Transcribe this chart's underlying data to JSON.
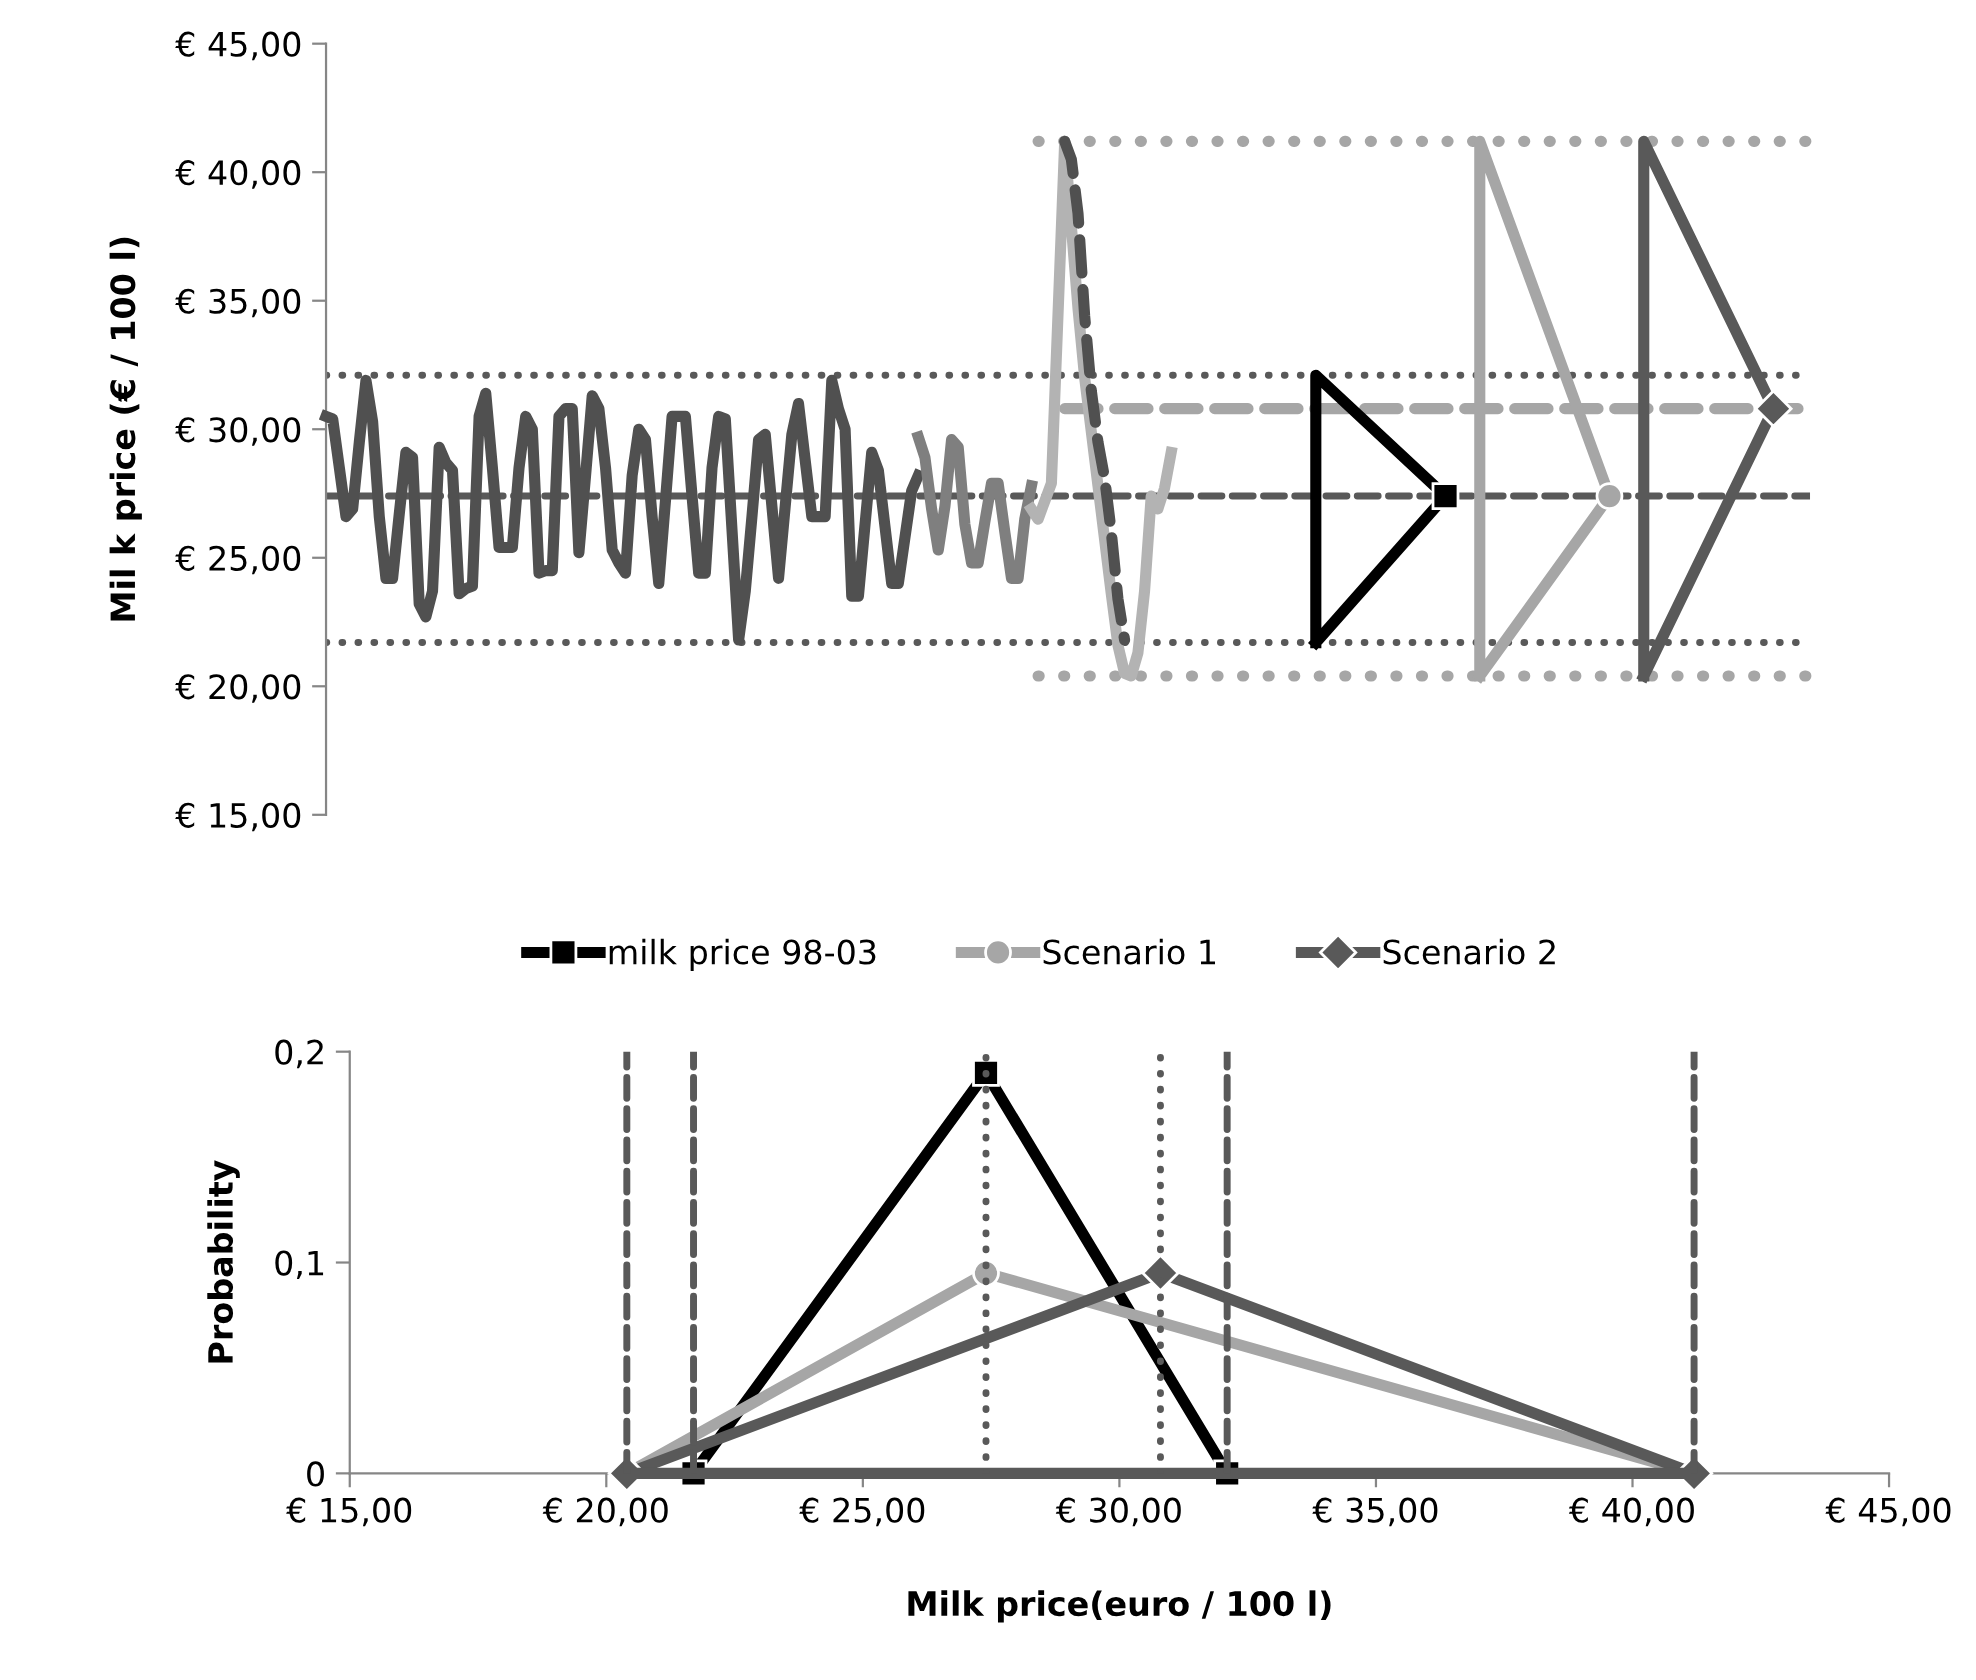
{
  "chart_data": [
    {
      "type": "line",
      "ylabel": "Mil k price (€ / 100 l)",
      "ylim": [
        15,
        45
      ],
      "tick_labels": "y",
      "categories": [
        null,
        null,
        null,
        null,
        null,
        null,
        null,
        null,
        null,
        null,
        null,
        null,
        null,
        null,
        null,
        null,
        null,
        null,
        null,
        null,
        null,
        null,
        null,
        null,
        null,
        null,
        null,
        null,
        null,
        null,
        null,
        null,
        null,
        null,
        null,
        null,
        null,
        null,
        null,
        null,
        null,
        null,
        null,
        null,
        null,
        null,
        null,
        null,
        null,
        null,
        null,
        null,
        null,
        null,
        null,
        null,
        null,
        null,
        null,
        null,
        null,
        null,
        null,
        null,
        null,
        null,
        null,
        null,
        null,
        null,
        null,
        null,
        null,
        null,
        null,
        null,
        null,
        null,
        null,
        null,
        null,
        null,
        null,
        null,
        null,
        null,
        null,
        null,
        null,
        null,
        null,
        null,
        null,
        null,
        null,
        null,
        null,
        null,
        null,
        null,
        null,
        null,
        null,
        null,
        null,
        null,
        null,
        null,
        null,
        null,
        null,
        null,
        null,
        null,
        null,
        null,
        null,
        null,
        null,
        null,
        null,
        null,
        null,
        null,
        null,
        null,
        null,
        null,
        null,
        null,
        null,
        null,
        null,
        null,
        null,
        null,
        null,
        null,
        null,
        null,
        null,
        null,
        null,
        null,
        null,
        null,
        null,
        null,
        null,
        null,
        null,
        null,
        null,
        null,
        null,
        null,
        null,
        null,
        null,
        null,
        null,
        null,
        null,
        null,
        null,
        null,
        null,
        null,
        null,
        null,
        null,
        null,
        null,
        null,
        null,
        null,
        null,
        null,
        null,
        null,
        null,
        null,
        null,
        null,
        null,
        null,
        null,
        null,
        null,
        null,
        null,
        null,
        null,
        null,
        null,
        null,
        null,
        null,
        null,
        null,
        null,
        null,
        null,
        null,
        null,
        null,
        null,
        null,
        null,
        null,
        null,
        null,
        null,
        null,
        null,
        null,
        null,
        null,
        null,
        null,
        null,
        null,
        null,
        null
      ],
      "yticks": [
        {
          "value": 15,
          "label": "€ 15,00"
        },
        {
          "value": 20,
          "label": "€ 20,00"
        },
        {
          "value": 25,
          "label": "€ 25,00"
        },
        {
          "value": 30,
          "label": "€ 30,00"
        },
        {
          "value": 35,
          "label": "€ 35,00"
        },
        {
          "value": 40,
          "label": "€ 40,00"
        },
        {
          "value": 45,
          "label": "€ 45,00"
        }
      ],
      "ref_lines": [
        {
          "axis": "y",
          "value": 32.1,
          "color": "#595959",
          "line_style": "dotted"
        },
        {
          "axis": "y",
          "value": 21.7,
          "color": "#595959",
          "line_style": "dotted"
        },
        {
          "axis": "y",
          "value": 27.4,
          "color": "#595959",
          "line_style": "dashed"
        }
      ],
      "series": [
        {
          "color": "#a6a6a6",
          "line_style": "dotted",
          "values": [
            null,
            null,
            null,
            null,
            null,
            null,
            null,
            null,
            null,
            null,
            null,
            null,
            null,
            null,
            null,
            null,
            null,
            null,
            null,
            null,
            null,
            null,
            null,
            null,
            null,
            null,
            null,
            null,
            null,
            null,
            null,
            null,
            null,
            null,
            null,
            null,
            null,
            null,
            null,
            null,
            null,
            null,
            null,
            null,
            null,
            null,
            null,
            null,
            null,
            null,
            null,
            null,
            null,
            null,
            null,
            null,
            null,
            null,
            null,
            null,
            null,
            null,
            null,
            null,
            null,
            null,
            null,
            null,
            null,
            null,
            null,
            null,
            null,
            null,
            null,
            null,
            null,
            null,
            null,
            null,
            null,
            null,
            null,
            null,
            null,
            null,
            null,
            null,
            null,
            null,
            null,
            null,
            null,
            null,
            null,
            null,
            null,
            null,
            null,
            null,
            null,
            null,
            null,
            null,
            null,
            null,
            null,
            41.2,
            41.2,
            41.2,
            41.2,
            41.2,
            41.2,
            41.2,
            41.2,
            41.2,
            41.2,
            41.2,
            41.2,
            41.2,
            41.2,
            41.2,
            41.2,
            41.2,
            41.2,
            41.2,
            41.2,
            41.2,
            41.2,
            41.2,
            41.2,
            41.2,
            41.2,
            41.2,
            41.2,
            41.2,
            41.2,
            41.2,
            41.2,
            41.2,
            41.2,
            41.2,
            41.2,
            41.2,
            41.2,
            41.2,
            41.2,
            41.2,
            41.2,
            41.2,
            41.2,
            41.2,
            41.2,
            41.2,
            41.2,
            41.2,
            41.2,
            41.2,
            41.2,
            41.2,
            41.2,
            41.2,
            41.2,
            41.2,
            41.2,
            41.2,
            41.2,
            41.2,
            41.2,
            41.2,
            41.2,
            41.2,
            41.2,
            41.2,
            41.2,
            41.2,
            41.2,
            41.2,
            41.2,
            41.2,
            41.2,
            41.2,
            41.2,
            41.2,
            41.2,
            41.2,
            41.2,
            41.2,
            41.2,
            41.2,
            41.2,
            41.2,
            41.2,
            41.2,
            41.2,
            41.2,
            41.2,
            41.2,
            41.2,
            41.2,
            41.2,
            41.2,
            41.2,
            41.2,
            41.2,
            41.2,
            41.2,
            41.2,
            41.2,
            41.2,
            41.2,
            41.2,
            41.2,
            41.2,
            41.2,
            41.2,
            41.2,
            41.2,
            41.2,
            41.2,
            41.2,
            41.2,
            41.2,
            41.2
          ]
        },
        {
          "color": "#a6a6a6",
          "line_style": "dotted",
          "values": [
            null,
            null,
            null,
            null,
            null,
            null,
            null,
            null,
            null,
            null,
            null,
            null,
            null,
            null,
            null,
            null,
            null,
            null,
            null,
            null,
            null,
            null,
            null,
            null,
            null,
            null,
            null,
            null,
            null,
            null,
            null,
            null,
            null,
            null,
            null,
            null,
            null,
            null,
            null,
            null,
            null,
            null,
            null,
            null,
            null,
            null,
            null,
            null,
            null,
            null,
            null,
            null,
            null,
            null,
            null,
            null,
            null,
            null,
            null,
            null,
            null,
            null,
            null,
            null,
            null,
            null,
            null,
            null,
            null,
            null,
            null,
            null,
            null,
            null,
            null,
            null,
            null,
            null,
            null,
            null,
            null,
            null,
            null,
            null,
            null,
            null,
            null,
            null,
            null,
            null,
            null,
            null,
            null,
            null,
            null,
            null,
            null,
            null,
            null,
            null,
            null,
            null,
            null,
            null,
            null,
            null,
            null,
            20.4,
            20.4,
            20.4,
            20.4,
            20.4,
            20.4,
            20.4,
            20.4,
            20.4,
            20.4,
            20.4,
            20.4,
            20.4,
            20.4,
            20.4,
            20.4,
            20.4,
            20.4,
            20.4,
            20.4,
            20.4,
            20.4,
            20.4,
            20.4,
            20.4,
            20.4,
            20.4,
            20.4,
            20.4,
            20.4,
            20.4,
            20.4,
            20.4,
            20.4,
            20.4,
            20.4,
            20.4,
            20.4,
            20.4,
            20.4,
            20.4,
            20.4,
            20.4,
            20.4,
            20.4,
            20.4,
            20.4,
            20.4,
            20.4,
            20.4,
            20.4,
            20.4,
            20.4,
            20.4,
            20.4,
            20.4,
            20.4,
            20.4,
            20.4,
            20.4,
            20.4,
            20.4,
            20.4,
            20.4,
            20.4,
            20.4,
            20.4,
            20.4,
            20.4,
            20.4,
            20.4,
            20.4,
            20.4,
            20.4,
            20.4,
            20.4,
            20.4,
            20.4,
            20.4,
            20.4,
            20.4,
            20.4,
            20.4,
            20.4,
            20.4,
            20.4,
            20.4,
            20.4,
            20.4,
            20.4,
            20.4,
            20.4,
            20.4,
            20.4,
            20.4,
            20.4,
            20.4,
            20.4,
            20.4,
            20.4,
            20.4,
            20.4,
            20.4,
            20.4,
            20.4,
            20.4,
            20.4,
            20.4,
            20.4,
            20.4,
            20.4,
            20.4,
            20.4,
            20.4,
            20.4,
            20.4,
            20.4
          ]
        },
        {
          "color": "#a6a6a6",
          "line_style": "dashed",
          "values": [
            null,
            null,
            null,
            null,
            null,
            null,
            null,
            null,
            null,
            null,
            null,
            null,
            null,
            null,
            null,
            null,
            null,
            null,
            null,
            null,
            null,
            null,
            null,
            null,
            null,
            null,
            null,
            null,
            null,
            null,
            null,
            null,
            null,
            null,
            null,
            null,
            null,
            null,
            null,
            null,
            null,
            null,
            null,
            null,
            null,
            null,
            null,
            null,
            null,
            null,
            null,
            null,
            null,
            null,
            null,
            null,
            null,
            null,
            null,
            null,
            null,
            null,
            null,
            null,
            null,
            null,
            null,
            null,
            null,
            null,
            null,
            null,
            null,
            null,
            null,
            null,
            null,
            null,
            null,
            null,
            null,
            null,
            null,
            null,
            null,
            null,
            null,
            null,
            null,
            null,
            null,
            null,
            null,
            null,
            null,
            null,
            null,
            null,
            null,
            null,
            null,
            null,
            null,
            null,
            null,
            null,
            null,
            null,
            null,
            null,
            null,
            30.8,
            30.8,
            30.8,
            30.8,
            30.8,
            30.8,
            30.8,
            30.8,
            30.8,
            30.8,
            30.8,
            30.8,
            30.8,
            30.8,
            30.8,
            30.8,
            30.8,
            30.8,
            30.8,
            30.8,
            30.8,
            30.8,
            30.8,
            30.8,
            30.8,
            30.8,
            30.8,
            30.8,
            30.8,
            30.8,
            30.8,
            30.8,
            30.8,
            30.8,
            30.8,
            30.8,
            30.8,
            30.8,
            30.8,
            30.8,
            30.8,
            30.8,
            30.8,
            30.8,
            30.8,
            30.8,
            30.8,
            30.8,
            30.8,
            30.8,
            30.8,
            30.8,
            30.8,
            30.8,
            30.8,
            30.8,
            30.8,
            30.8,
            30.8,
            30.8,
            30.8,
            30.8,
            30.8,
            30.8,
            30.8,
            30.8,
            30.8,
            30.8,
            30.8,
            30.8,
            30.8,
            30.8,
            30.8,
            30.8,
            30.8,
            30.8,
            30.8,
            30.8,
            30.8,
            30.8,
            30.8,
            30.8,
            30.8,
            30.8,
            30.8,
            30.8,
            30.8,
            30.8,
            30.8,
            30.8,
            30.8,
            30.8,
            30.8,
            30.8,
            30.8,
            30.8,
            30.8,
            30.8,
            30.8,
            30.8,
            30.8,
            30.8,
            30.8,
            30.8,
            30.8,
            30.8,
            30.8,
            30.8,
            30.8,
            30.8,
            30.8,
            30.8,
            30.8
          ]
        },
        {
          "color": "#505050",
          "line_style": "solid",
          "values": [
            30.5,
            30.4,
            28.5,
            26.6,
            26.9,
            29.5,
            31.9,
            30.3,
            26.6,
            24.2,
            24.2,
            26.7,
            29.1,
            28.9,
            23.2,
            22.7,
            23.7,
            29.3,
            28.7,
            28.4,
            23.6,
            23.8,
            23.9,
            30.5,
            31.4,
            28.5,
            25.4,
            25.4,
            25.4,
            28.5,
            30.5,
            30.0,
            24.4,
            24.5,
            24.5,
            30.5,
            30.8,
            30.8,
            25.2,
            28.2,
            31.3,
            30.8,
            28.5,
            25.3,
            24.8,
            24.4,
            28.2,
            30.0,
            29.6,
            26.6,
            24.0,
            27.2,
            30.5,
            30.5,
            30.5,
            27.4,
            24.4,
            24.4,
            28.5,
            30.5,
            30.4,
            26.1,
            21.8,
            23.7,
            26.6,
            29.6,
            29.8,
            27.0,
            24.2,
            27.0,
            29.8,
            31.0,
            28.8,
            26.6,
            26.6,
            26.6,
            31.9,
            30.8,
            30.0,
            23.5,
            23.5,
            26.3,
            29.1,
            28.4,
            26.2,
            24.0,
            24.0,
            25.8,
            27.6,
            28.2,
            null,
            null,
            null,
            null,
            null,
            null,
            null,
            null,
            null,
            null,
            null,
            null,
            null,
            null,
            null,
            null,
            null,
            null,
            null,
            null,
            null,
            null,
            null,
            null,
            null,
            null,
            null,
            null,
            null,
            null,
            null,
            null,
            null,
            null,
            null,
            null,
            null,
            null,
            null,
            null,
            null,
            null,
            null,
            null,
            null,
            null,
            null,
            null,
            null,
            null,
            null,
            null,
            null,
            null,
            null,
            null,
            null,
            null,
            null,
            null,
            null,
            null,
            null,
            null,
            null,
            null,
            null,
            null,
            null,
            null,
            null,
            null,
            null,
            null,
            null,
            null,
            null,
            null,
            null,
            null,
            null,
            null,
            null,
            null,
            null,
            null,
            null,
            null,
            null,
            null,
            null,
            null,
            null,
            null,
            null,
            null,
            null,
            null,
            null,
            null,
            null,
            null,
            null,
            null,
            null,
            null,
            null,
            null,
            null,
            null,
            null,
            null,
            null,
            null,
            null,
            null,
            null,
            null,
            null,
            null,
            null,
            null,
            null,
            null,
            null,
            null,
            null,
            null,
            null,
            null,
            null,
            null,
            null,
            null
          ]
        },
        {
          "color": "#7f7f7f",
          "line_style": "solid",
          "values": [
            null,
            null,
            null,
            null,
            null,
            null,
            null,
            null,
            null,
            null,
            null,
            null,
            null,
            null,
            null,
            null,
            null,
            null,
            null,
            null,
            null,
            null,
            null,
            null,
            null,
            null,
            null,
            null,
            null,
            null,
            null,
            null,
            null,
            null,
            null,
            null,
            null,
            null,
            null,
            null,
            null,
            null,
            null,
            null,
            null,
            null,
            null,
            null,
            null,
            null,
            null,
            null,
            null,
            null,
            null,
            null,
            null,
            null,
            null,
            null,
            null,
            null,
            null,
            null,
            null,
            null,
            null,
            null,
            null,
            null,
            null,
            null,
            null,
            null,
            null,
            null,
            null,
            null,
            null,
            null,
            null,
            null,
            null,
            null,
            null,
            null,
            null,
            null,
            null,
            29.7,
            28.9,
            26.9,
            25.3,
            27.0,
            29.6,
            29.3,
            26.3,
            24.8,
            24.8,
            26.4,
            27.9,
            27.9,
            26.0,
            24.2,
            24.2,
            26.5,
            27.8,
            null,
            null,
            null,
            null,
            null,
            null,
            null,
            null,
            null,
            null,
            null,
            null,
            null,
            null,
            null,
            null,
            null,
            null,
            null,
            null,
            null,
            null,
            null,
            null,
            null,
            null,
            null,
            null,
            null,
            null,
            null,
            null,
            null,
            null,
            null,
            null,
            null,
            null,
            null,
            null,
            null,
            null,
            null,
            null,
            null,
            null,
            null,
            null,
            null,
            null,
            null,
            null,
            null,
            null,
            null,
            null,
            null,
            null,
            null,
            null,
            null,
            null,
            null,
            null,
            null,
            null,
            null,
            null,
            null,
            null,
            null,
            null,
            null,
            null,
            null,
            null,
            null,
            null,
            null,
            null,
            null,
            null,
            null,
            null,
            null,
            null,
            null,
            null,
            null,
            null,
            null,
            null,
            null,
            null,
            null,
            null,
            null,
            null,
            null,
            null,
            null,
            null,
            null,
            null,
            null,
            null,
            null,
            null,
            null,
            null,
            null,
            null,
            null,
            null,
            null,
            null,
            null
          ]
        },
        {
          "color": "#b3b3b3",
          "line_style": "solid",
          "values": [
            null,
            null,
            null,
            null,
            null,
            null,
            null,
            null,
            null,
            null,
            null,
            null,
            null,
            null,
            null,
            null,
            null,
            null,
            null,
            null,
            null,
            null,
            null,
            null,
            null,
            null,
            null,
            null,
            null,
            null,
            null,
            null,
            null,
            null,
            null,
            null,
            null,
            null,
            null,
            null,
            null,
            null,
            null,
            null,
            null,
            null,
            null,
            null,
            null,
            null,
            null,
            null,
            null,
            null,
            null,
            null,
            null,
            null,
            null,
            null,
            null,
            null,
            null,
            null,
            null,
            null,
            null,
            null,
            null,
            null,
            null,
            null,
            null,
            null,
            null,
            null,
            null,
            null,
            null,
            null,
            null,
            null,
            null,
            null,
            null,
            null,
            null,
            null,
            null,
            null,
            null,
            null,
            null,
            null,
            null,
            null,
            null,
            null,
            null,
            null,
            null,
            null,
            null,
            null,
            null,
            null,
            26.9,
            26.5,
            27.2,
            27.9,
            34.5,
            41.2,
            37.9,
            34.7,
            32.0,
            29.9,
            27.8,
            25.7,
            23.6,
            21.6,
            20.5,
            20.4,
            21.3,
            23.7,
            27.4,
            26.9,
            27.7,
            29.1,
            null,
            null,
            null,
            null,
            null,
            null,
            null,
            null,
            null,
            null,
            null,
            null,
            null,
            null,
            null,
            null,
            null,
            null,
            null,
            null,
            null,
            null,
            null,
            null,
            null,
            null,
            null,
            null,
            null,
            null,
            null,
            null,
            null,
            null,
            null,
            null,
            null,
            null,
            null,
            null,
            null,
            null,
            null,
            null,
            null,
            null,
            null,
            null,
            null,
            null,
            null,
            null,
            null,
            null,
            null,
            null,
            null,
            null,
            null,
            null,
            null,
            null,
            null,
            null,
            null,
            null,
            null,
            null,
            null,
            null,
            null,
            null,
            null,
            null,
            null,
            null,
            null,
            null,
            null,
            null,
            null,
            null,
            null,
            null,
            null,
            null,
            null,
            null,
            null,
            null,
            null,
            null,
            null,
            null,
            null,
            null
          ]
        },
        {
          "color": "#505050",
          "line_style": "dashed",
          "values": [
            null,
            null,
            null,
            null,
            null,
            null,
            null,
            null,
            null,
            null,
            null,
            null,
            null,
            null,
            null,
            null,
            null,
            null,
            null,
            null,
            null,
            null,
            null,
            null,
            null,
            null,
            null,
            null,
            null,
            null,
            null,
            null,
            null,
            null,
            null,
            null,
            null,
            null,
            null,
            null,
            null,
            null,
            null,
            null,
            null,
            null,
            null,
            null,
            null,
            null,
            null,
            null,
            null,
            null,
            null,
            null,
            null,
            null,
            null,
            null,
            null,
            null,
            null,
            null,
            null,
            null,
            null,
            null,
            null,
            null,
            null,
            null,
            null,
            null,
            null,
            null,
            null,
            null,
            null,
            null,
            null,
            null,
            null,
            null,
            null,
            null,
            null,
            null,
            null,
            null,
            null,
            null,
            null,
            null,
            null,
            null,
            null,
            null,
            null,
            null,
            null,
            null,
            null,
            null,
            null,
            null,
            null,
            null,
            null,
            null,
            null,
            41.2,
            40.5,
            38.4,
            34.4,
            31.5,
            29.5,
            28.1,
            26.0,
            23.4,
            21.8,
            null,
            null,
            null,
            null,
            null,
            null,
            null,
            null,
            null,
            null,
            null,
            null,
            null,
            null,
            null,
            null,
            null,
            null,
            null,
            null,
            null,
            null,
            null,
            null,
            null,
            null,
            null,
            null,
            null,
            null,
            null,
            null,
            null,
            null,
            null,
            null,
            null,
            null,
            null,
            null,
            null,
            null,
            null,
            null,
            null,
            null,
            null,
            null,
            null,
            null,
            null,
            null,
            null,
            null,
            null,
            null,
            null,
            null,
            null,
            null,
            null,
            null,
            null,
            null,
            null,
            null,
            null,
            null,
            null,
            null,
            null,
            null,
            null,
            null,
            null,
            null,
            null,
            null,
            null,
            null,
            null,
            null,
            null,
            null,
            null,
            null,
            null,
            null,
            null,
            null,
            null,
            null,
            null,
            null,
            null,
            null,
            null,
            null,
            null,
            null,
            null,
            null,
            null
          ]
        }
      ]
    },
    {
      "type": "line",
      "xlabel": "Milk price(euro / 100 l)",
      "ylabel": "Probability",
      "xlim": [
        15,
        45
      ],
      "ylim": [
        0,
        0.2
      ],
      "legend": "top",
      "xticks": [
        {
          "value": 15,
          "label": "€ 15,00"
        },
        {
          "value": 20,
          "label": "€ 20,00"
        },
        {
          "value": 25,
          "label": "€ 25,00"
        },
        {
          "value": 30,
          "label": "€ 30,00"
        },
        {
          "value": 35,
          "label": "€ 35,00"
        },
        {
          "value": 40,
          "label": "€ 40,00"
        },
        {
          "value": 45,
          "label": "€ 45,00"
        }
      ],
      "yticks": [
        0,
        {
          "value": 0.1,
          "label": "0,1"
        },
        {
          "value": 0.2,
          "label": "0,2"
        }
      ],
      "ref_lines": [
        {
          "axis": "x",
          "value": 20.4,
          "color": "#595959",
          "line_style": "dashed"
        },
        {
          "axis": "x",
          "value": 21.7,
          "color": "#595959",
          "line_style": "dashed"
        },
        {
          "axis": "x",
          "value": 27.4,
          "color": "#595959",
          "line_style": "dotted"
        },
        {
          "axis": "x",
          "value": 30.8,
          "color": "#595959",
          "line_style": "dotted"
        },
        {
          "axis": "x",
          "value": 32.1,
          "color": "#595959",
          "line_style": "dashed"
        },
        {
          "axis": "x",
          "value": 41.2,
          "color": "#595959",
          "line_style": "dashed"
        }
      ],
      "series": [
        {
          "name": "milk price 98-03",
          "color": "#000000",
          "marker": "square",
          "line_style": "solid",
          "x": [
            21.7,
            27.4,
            32.1
          ],
          "values": [
            0,
            0.19,
            0
          ]
        },
        {
          "name": "Scenario 1",
          "color": "#a6a6a6",
          "marker": "circle",
          "line_style": "solid",
          "x": [
            20.4,
            27.4,
            41.2
          ],
          "values": [
            0,
            0.095,
            0
          ]
        },
        {
          "name": "Scenario 2",
          "color": "#595959",
          "marker": "diamond",
          "line_style": "solid",
          "x": [
            20.4,
            30.8,
            41.2
          ],
          "values": [
            0,
            0.095,
            0
          ]
        },
        {
          "color": "#595959",
          "line_style": "solid",
          "x": [
            20.4,
            41.2
          ],
          "values": [
            0,
            0
          ]
        }
      ]
    }
  ]
}
